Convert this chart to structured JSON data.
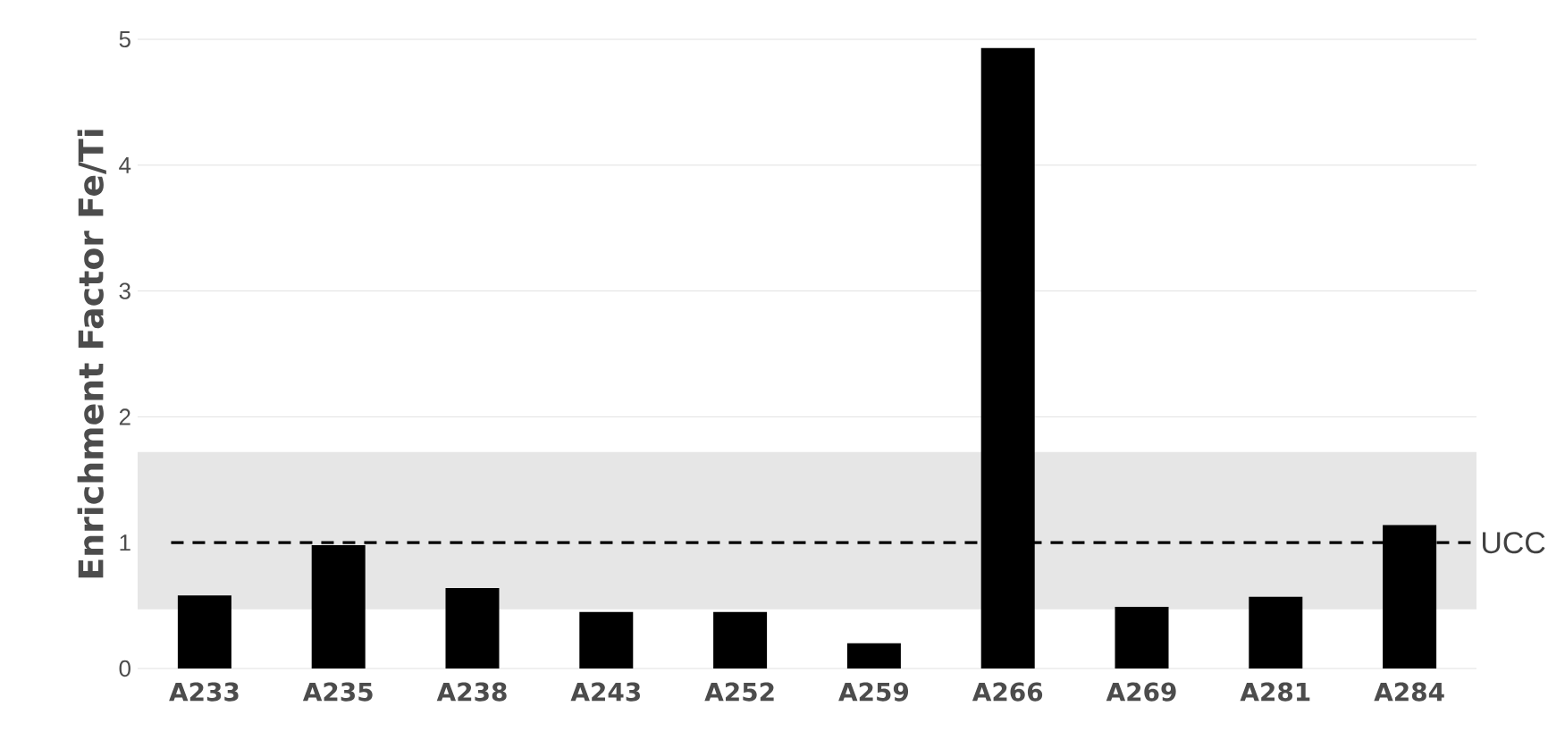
{
  "chart_data": {
    "type": "bar",
    "ylabel": "Enrichment Factor Fe/Ti",
    "categories": [
      "A233",
      "A235",
      "A238",
      "A243",
      "A252",
      "A259",
      "A266",
      "A269",
      "A281",
      "A284"
    ],
    "values": [
      0.58,
      0.98,
      0.64,
      0.45,
      0.45,
      0.2,
      4.93,
      0.49,
      0.57,
      1.14
    ],
    "color": "#000000",
    "ylim": [
      0,
      5
    ],
    "yticks": [
      0,
      1,
      2,
      3,
      4,
      5
    ],
    "grid": "y",
    "ref_lines": [
      {
        "axis": "y",
        "value": 1,
        "label": "UCC",
        "color": "#000000",
        "line_style": "dashed"
      }
    ],
    "bands": [
      {
        "axis": "y",
        "from": 0.47,
        "to": 1.72,
        "color": "#e6e6e6"
      }
    ]
  }
}
